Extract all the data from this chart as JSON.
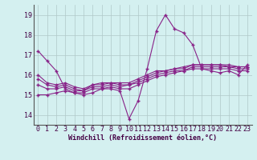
{
  "title": "",
  "xlabel": "Windchill (Refroidissement éolien,°C)",
  "ylabel": "",
  "background_color": "#d4f0f0",
  "grid_color": "#b0c8c8",
  "line_color": "#882288",
  "xlim": [
    -0.5,
    23.5
  ],
  "ylim": [
    13.5,
    19.5
  ],
  "yticks": [
    14,
    15,
    16,
    17,
    18,
    19
  ],
  "xticks": [
    0,
    1,
    2,
    3,
    4,
    5,
    6,
    7,
    8,
    9,
    10,
    11,
    12,
    13,
    14,
    15,
    16,
    17,
    18,
    19,
    20,
    21,
    22,
    23
  ],
  "series": [
    [
      17.2,
      16.7,
      16.2,
      15.3,
      15.1,
      15.0,
      15.1,
      15.3,
      15.3,
      15.2,
      13.8,
      14.7,
      16.3,
      18.2,
      19.0,
      18.3,
      18.1,
      17.5,
      16.3,
      16.2,
      16.1,
      16.2,
      16.0,
      16.5
    ],
    [
      15.0,
      15.0,
      15.1,
      15.2,
      15.1,
      15.1,
      15.3,
      15.3,
      15.4,
      15.3,
      15.3,
      15.5,
      15.7,
      15.9,
      16.0,
      16.1,
      16.2,
      16.3,
      16.3,
      16.3,
      16.3,
      16.3,
      16.2,
      16.2
    ],
    [
      15.5,
      15.3,
      15.3,
      15.4,
      15.2,
      15.2,
      15.4,
      15.4,
      15.5,
      15.4,
      15.5,
      15.6,
      15.8,
      16.0,
      16.1,
      16.2,
      16.2,
      16.4,
      16.4,
      16.4,
      16.4,
      16.4,
      16.3,
      16.3
    ],
    [
      15.8,
      15.5,
      15.4,
      15.5,
      15.3,
      15.2,
      15.5,
      15.5,
      15.6,
      15.5,
      15.5,
      15.7,
      15.9,
      16.1,
      16.2,
      16.3,
      16.3,
      16.5,
      16.5,
      16.5,
      16.5,
      16.4,
      16.4,
      16.4
    ],
    [
      16.0,
      15.6,
      15.5,
      15.6,
      15.4,
      15.3,
      15.5,
      15.6,
      15.6,
      15.6,
      15.6,
      15.8,
      16.0,
      16.2,
      16.2,
      16.3,
      16.4,
      16.5,
      16.5,
      16.5,
      16.5,
      16.5,
      16.4,
      16.4
    ]
  ],
  "tick_fontsize": 6,
  "xlabel_fontsize": 6,
  "marker_size": 2.5,
  "line_width": 0.8
}
